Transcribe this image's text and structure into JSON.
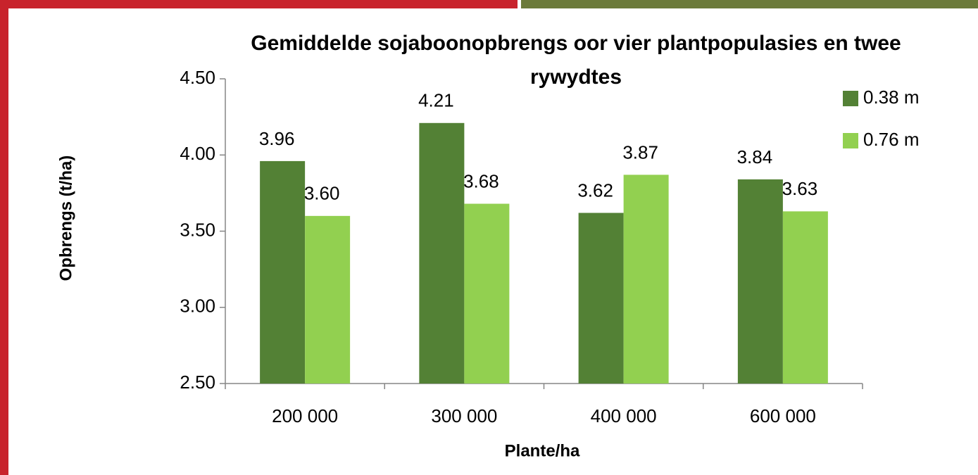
{
  "chart_data": {
    "type": "bar",
    "title": "Gemiddelde sojaboonopbrengs oor vier plantpopulasies en twee rywydtes",
    "x_label": "Plante/ha",
    "y_label": "Opbrengs (t/ha)",
    "categories": [
      "200 000",
      "300 000",
      "400 000",
      "600 000"
    ],
    "series": [
      {
        "name": "0.38 m",
        "color": "#538135",
        "values": [
          3.96,
          4.21,
          3.62,
          3.84
        ],
        "value_labels": [
          "3.96",
          "4.21",
          "3.62",
          "3.84"
        ]
      },
      {
        "name": "0.76 m",
        "color": "#92d050",
        "values": [
          3.6,
          3.68,
          3.87,
          3.63
        ],
        "value_labels": [
          "3.60",
          "3.68",
          "3.87",
          "3.63"
        ]
      }
    ],
    "ylim": [
      2.5,
      4.5
    ],
    "yticks": [
      {
        "value": 2.5,
        "label": "2.50"
      },
      {
        "value": 3,
        "label": "3.00"
      },
      {
        "value": 3.5,
        "label": "3.50"
      },
      {
        "value": 4,
        "label": "4.00"
      },
      {
        "value": 4.5,
        "label": "4.50"
      }
    ],
    "grid": false,
    "legend": "upper right"
  }
}
